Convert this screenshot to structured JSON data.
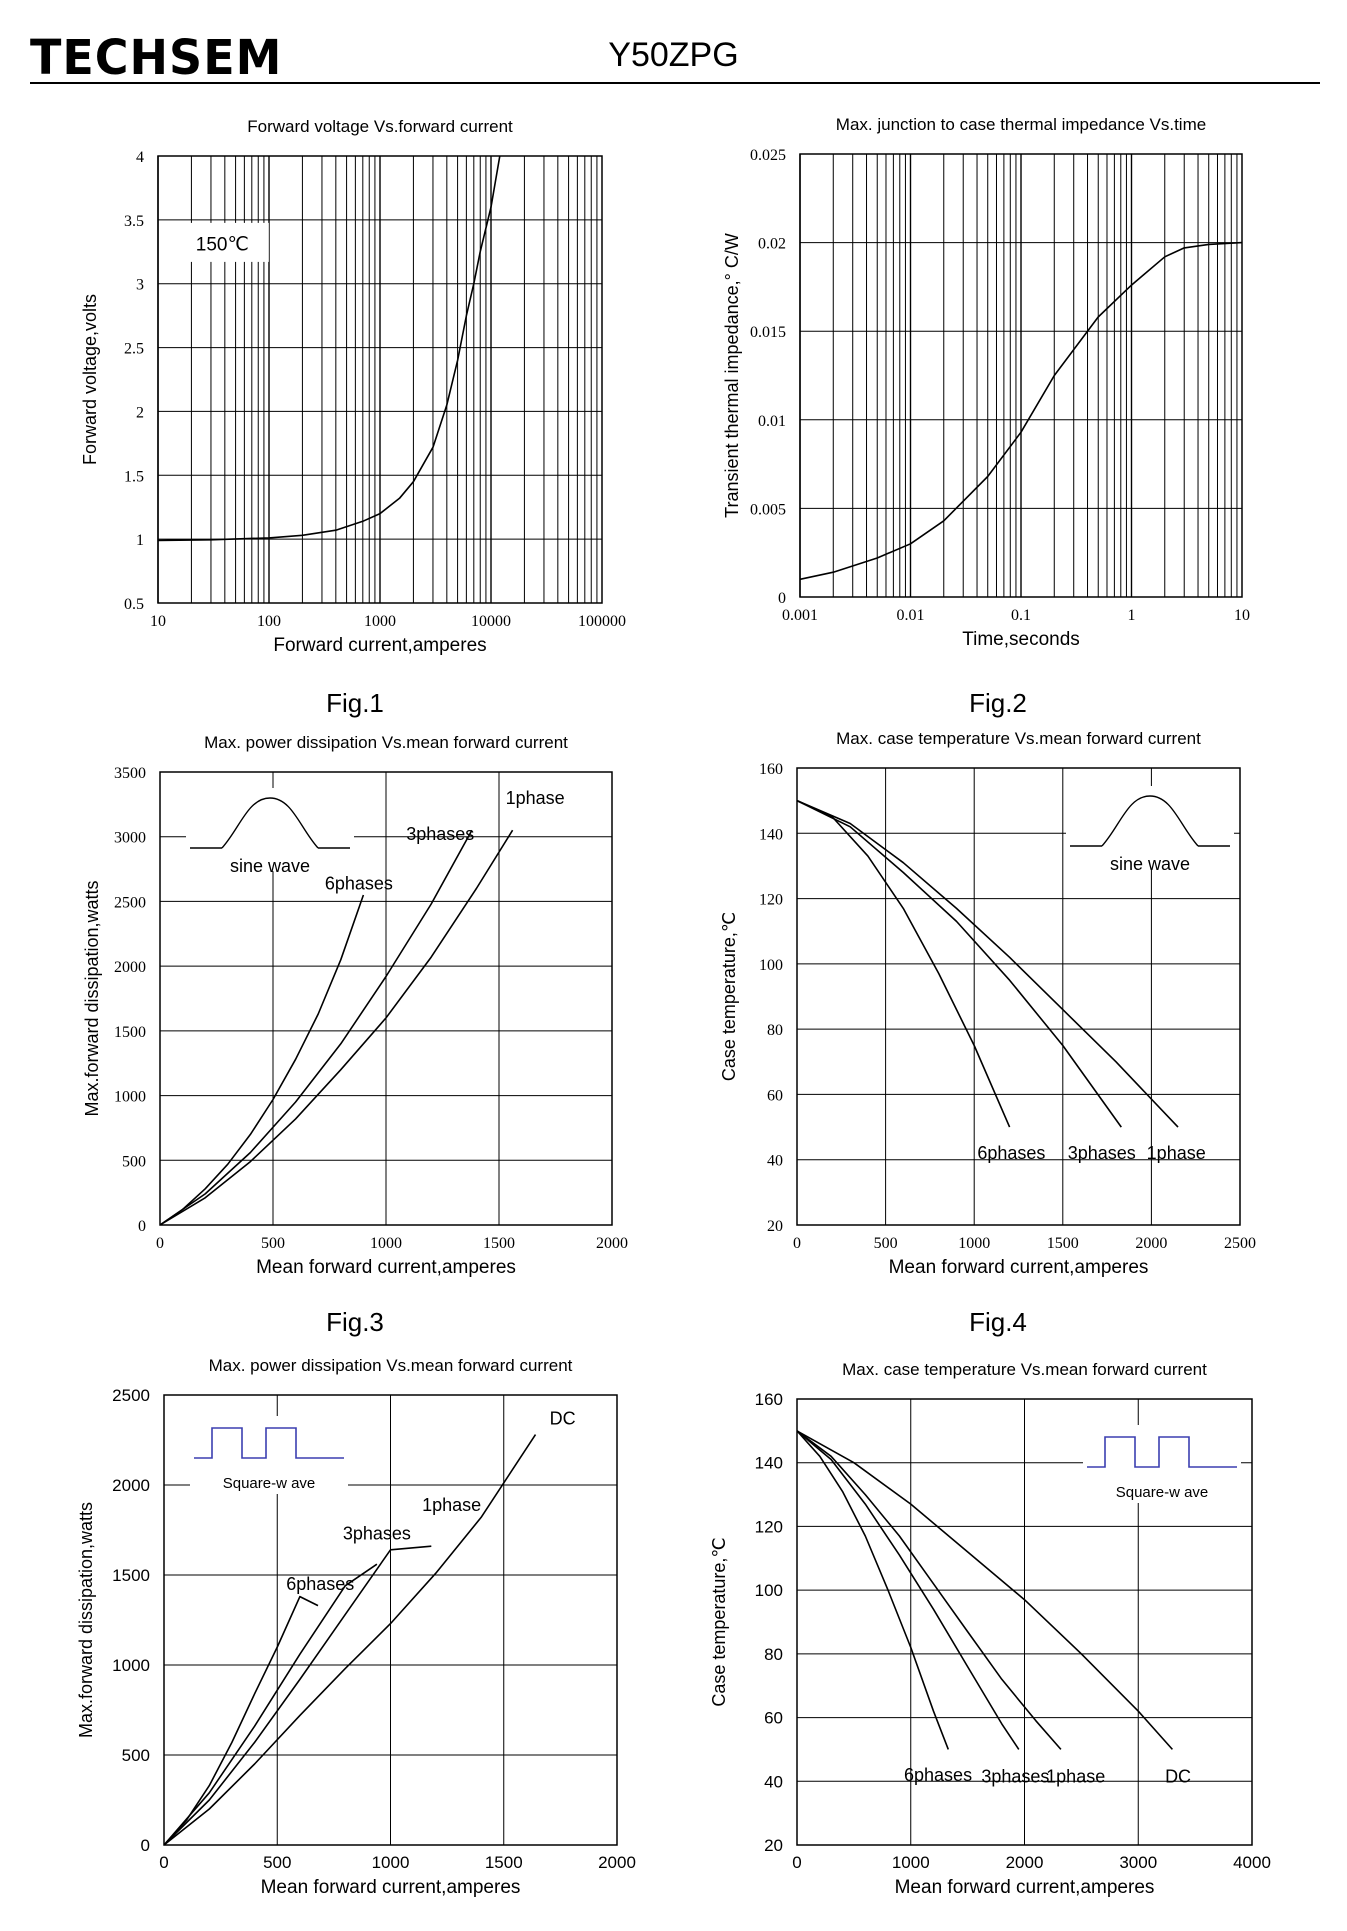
{
  "header": {
    "brand": "TECHSEM",
    "model": "Y50ZPG"
  },
  "figures": [
    "Fig.1",
    "Fig.2",
    "Fig.3",
    "Fig.4"
  ],
  "chart_data": [
    {
      "id": "fig1",
      "type": "line",
      "title": "Forward  voltage  Vs.forward  current",
      "xlabel": "Forward  current,amperes",
      "ylabel": "Forward  voltage,volts",
      "xscale": "log",
      "xlim": [
        10,
        100000
      ],
      "ylim": [
        0.5,
        4
      ],
      "xticks": [
        10,
        100,
        1000,
        10000,
        100000
      ],
      "yticks": [
        0.5,
        1,
        1.5,
        2,
        2.5,
        3,
        3.5,
        4
      ],
      "xtick_labels": [
        "10",
        "100",
        "1000",
        "10000",
        "100000"
      ],
      "ytick_labels": [
        "0.5",
        "1",
        "1.5",
        "2",
        "2.5",
        "3",
        "3.5",
        "4"
      ],
      "grid": true,
      "annotations": [
        {
          "text": "150℃",
          "x": 18,
          "y": 3.3,
          "boxed": true
        }
      ],
      "series": [
        {
          "name": "",
          "points": [
            [
              10,
              0.99
            ],
            [
              30,
              0.995
            ],
            [
              100,
              1.01
            ],
            [
              200,
              1.03
            ],
            [
              400,
              1.07
            ],
            [
              700,
              1.14
            ],
            [
              1000,
              1.2
            ],
            [
              1500,
              1.32
            ],
            [
              2000,
              1.45
            ],
            [
              3000,
              1.72
            ],
            [
              4000,
              2.05
            ],
            [
              5000,
              2.4
            ],
            [
              6000,
              2.75
            ],
            [
              7000,
              3.0
            ],
            [
              8000,
              3.25
            ],
            [
              10000,
              3.6
            ],
            [
              12000,
              4.0
            ]
          ]
        }
      ]
    },
    {
      "id": "fig2",
      "type": "line",
      "title": "Max. junction to case thermal impedance  Vs.time",
      "xlabel": "Time,seconds",
      "ylabel": "Transient  thermal impedance,° C/W",
      "xscale": "log",
      "xlim": [
        0.001,
        10
      ],
      "ylim": [
        0,
        0.025
      ],
      "xticks": [
        0.001,
        0.01,
        0.1,
        1,
        10
      ],
      "yticks": [
        0,
        0.005,
        0.01,
        0.015,
        0.02,
        0.025
      ],
      "xtick_labels": [
        "0.001",
        "0.01",
        "0.1",
        "1",
        "10"
      ],
      "ytick_labels": [
        "0",
        "0.005",
        "0.01",
        "0.015",
        "0.02",
        "0.025"
      ],
      "grid": true,
      "series": [
        {
          "name": "",
          "points": [
            [
              0.001,
              0.001
            ],
            [
              0.002,
              0.0014
            ],
            [
              0.005,
              0.0022
            ],
            [
              0.01,
              0.003
            ],
            [
              0.02,
              0.0043
            ],
            [
              0.05,
              0.0068
            ],
            [
              0.1,
              0.0093
            ],
            [
              0.2,
              0.0125
            ],
            [
              0.5,
              0.0158
            ],
            [
              1,
              0.0176
            ],
            [
              2,
              0.0192
            ],
            [
              3,
              0.0197
            ],
            [
              5,
              0.0199
            ],
            [
              10,
              0.02
            ]
          ]
        }
      ]
    },
    {
      "id": "fig3",
      "type": "line",
      "title": "Max. power dissipation  Vs.mean  forward current",
      "xlabel": "Mean forward  current,amperes",
      "ylabel": "Max.forward  dissipation,watts",
      "xlim": [
        0,
        2000
      ],
      "ylim": [
        0,
        3500
      ],
      "xticks": [
        0,
        500,
        1000,
        1500,
        2000
      ],
      "yticks": [
        0,
        500,
        1000,
        1500,
        2000,
        2500,
        3000,
        3500
      ],
      "xtick_labels": [
        "0",
        "500",
        "1000",
        "1500",
        "2000"
      ],
      "ytick_labels": [
        "0",
        "500",
        "1000",
        "1500",
        "2000",
        "2500",
        "3000",
        "3500"
      ],
      "grid": true,
      "inset": {
        "shape": "sine",
        "label": "sine wave"
      },
      "series": [
        {
          "name": "6phases",
          "points": [
            [
              0,
              0
            ],
            [
              100,
              120
            ],
            [
              200,
              280
            ],
            [
              300,
              470
            ],
            [
              400,
              700
            ],
            [
              500,
              970
            ],
            [
              600,
              1280
            ],
            [
              700,
              1630
            ],
            [
              800,
              2050
            ],
            [
              900,
              2550
            ]
          ]
        },
        {
          "name": "3phases",
          "points": [
            [
              0,
              0
            ],
            [
              200,
              240
            ],
            [
              400,
              560
            ],
            [
              600,
              950
            ],
            [
              800,
              1400
            ],
            [
              1000,
              1920
            ],
            [
              1200,
              2480
            ],
            [
              1380,
              3050
            ]
          ]
        },
        {
          "name": "1phase",
          "points": [
            [
              0,
              0
            ],
            [
              200,
              210
            ],
            [
              400,
              490
            ],
            [
              600,
              820
            ],
            [
              800,
              1200
            ],
            [
              1000,
              1600
            ],
            [
              1200,
              2070
            ],
            [
              1400,
              2600
            ],
            [
              1560,
              3050
            ]
          ]
        }
      ],
      "series_labels": [
        {
          "text": "1phase",
          "x": 1660,
          "y": 3300
        },
        {
          "text": "3phases",
          "x": 1240,
          "y": 3020
        },
        {
          "text": "6phases",
          "x": 880,
          "y": 2640
        }
      ]
    },
    {
      "id": "fig4",
      "type": "line",
      "title": "Max. case temperature  Vs.mean  forward current",
      "xlabel": "Mean forward  current,amperes",
      "ylabel": "Case temperature,℃",
      "xlim": [
        0,
        2500
      ],
      "ylim": [
        20,
        160
      ],
      "xticks": [
        0,
        500,
        1000,
        1500,
        2000,
        2500
      ],
      "yticks": [
        20,
        40,
        60,
        80,
        100,
        120,
        140,
        160
      ],
      "xtick_labels": [
        "0",
        "500",
        "1000",
        "1500",
        "2000",
        "2500"
      ],
      "ytick_labels": [
        "20",
        "40",
        "60",
        "80",
        "100",
        "120",
        "140",
        "160"
      ],
      "grid": true,
      "inset": {
        "shape": "sine",
        "label": "sine wave"
      },
      "series": [
        {
          "name": "6phases",
          "points": [
            [
              0,
              150
            ],
            [
              200,
              145
            ],
            [
              400,
              133
            ],
            [
              600,
              117
            ],
            [
              800,
              97
            ],
            [
              1000,
              75
            ],
            [
              1200,
              50
            ]
          ]
        },
        {
          "name": "3phases",
          "points": [
            [
              0,
              150
            ],
            [
              300,
              142
            ],
            [
              600,
              128
            ],
            [
              900,
              113
            ],
            [
              1200,
              95
            ],
            [
              1500,
              75
            ],
            [
              1830,
              50
            ]
          ]
        },
        {
          "name": "1phase",
          "points": [
            [
              0,
              150
            ],
            [
              300,
              143
            ],
            [
              600,
              131
            ],
            [
              900,
              117
            ],
            [
              1200,
              102
            ],
            [
              1500,
              86
            ],
            [
              1800,
              70
            ],
            [
              2150,
              50
            ]
          ]
        }
      ],
      "series_labels": [
        {
          "text": "6phases",
          "x": 1210,
          "y": 42
        },
        {
          "text": "3phases",
          "x": 1720,
          "y": 42
        },
        {
          "text": "1phase",
          "x": 2140,
          "y": 42
        }
      ]
    },
    {
      "id": "fig5",
      "type": "line",
      "title": "Max. power dissipation  Vs.mean  forward current",
      "xlabel": "Mean forward  current,amperes",
      "ylabel": "Max.forward  dissipation,watts",
      "xlim": [
        0,
        2000
      ],
      "ylim": [
        0,
        2500
      ],
      "xticks": [
        0,
        500,
        1000,
        1500,
        2000
      ],
      "yticks": [
        0,
        500,
        1000,
        1500,
        2000,
        2500
      ],
      "xtick_labels": [
        "0",
        "500",
        "1000",
        "1500",
        "2000"
      ],
      "ytick_labels": [
        "0",
        "500",
        "1000",
        "1500",
        "2000",
        "2500"
      ],
      "grid": true,
      "inset": {
        "shape": "square",
        "label": "Square-w ave"
      },
      "series": [
        {
          "name": "6phases",
          "points": [
            [
              0,
              0
            ],
            [
              100,
              140
            ],
            [
              200,
              330
            ],
            [
              300,
              570
            ],
            [
              400,
              840
            ],
            [
              500,
              1100
            ],
            [
              600,
              1380
            ],
            [
              680,
              1330
            ]
          ]
        },
        {
          "name": "3phases",
          "points": [
            [
              0,
              0
            ],
            [
              200,
              290
            ],
            [
              400,
              660
            ],
            [
              600,
              1060
            ],
            [
              800,
              1440
            ],
            [
              940,
              1560
            ]
          ]
        },
        {
          "name": "1phase",
          "points": [
            [
              0,
              0
            ],
            [
              200,
              250
            ],
            [
              400,
              570
            ],
            [
              600,
              920
            ],
            [
              800,
              1280
            ],
            [
              1000,
              1640
            ],
            [
              1180,
              1660
            ]
          ]
        },
        {
          "name": "DC",
          "points": [
            [
              0,
              0
            ],
            [
              200,
              200
            ],
            [
              400,
              450
            ],
            [
              600,
              720
            ],
            [
              800,
              980
            ],
            [
              1000,
              1230
            ],
            [
              1200,
              1510
            ],
            [
              1400,
              1820
            ],
            [
              1640,
              2280
            ]
          ]
        }
      ],
      "series_labels": [
        {
          "text": "DC",
          "x": 1760,
          "y": 2370
        },
        {
          "text": "1phase",
          "x": 1270,
          "y": 1890
        },
        {
          "text": "3phases",
          "x": 940,
          "y": 1730
        },
        {
          "text": "6phases",
          "x": 690,
          "y": 1450
        }
      ]
    },
    {
      "id": "fig6",
      "type": "line",
      "title": "Max. case temperature  Vs.mean  forward current",
      "xlabel": "Mean forward  current,amperes",
      "ylabel": "Case temperature,℃",
      "xlim": [
        0,
        4000
      ],
      "ylim": [
        20,
        160
      ],
      "xticks": [
        0,
        1000,
        2000,
        3000,
        4000
      ],
      "yticks": [
        20,
        40,
        60,
        80,
        100,
        120,
        140,
        160
      ],
      "xtick_labels": [
        "0",
        "1000",
        "2000",
        "3000",
        "4000"
      ],
      "ytick_labels": [
        "20",
        "40",
        "60",
        "80",
        "100",
        "120",
        "140",
        "160"
      ],
      "grid": true,
      "inset": {
        "shape": "square",
        "label": "Square-w ave"
      },
      "series": [
        {
          "name": "6phases",
          "points": [
            [
              0,
              150
            ],
            [
              200,
              142
            ],
            [
              400,
              131
            ],
            [
              600,
              117
            ],
            [
              800,
              100
            ],
            [
              1000,
              82
            ],
            [
              1200,
              62
            ],
            [
              1330,
              50
            ]
          ]
        },
        {
          "name": "3phases",
          "points": [
            [
              0,
              150
            ],
            [
              300,
              141
            ],
            [
              600,
              127
            ],
            [
              900,
              111
            ],
            [
              1200,
              94
            ],
            [
              1500,
              76
            ],
            [
              1800,
              58
            ],
            [
              1950,
              50
            ]
          ]
        },
        {
          "name": "1phase",
          "points": [
            [
              0,
              150
            ],
            [
              300,
              142
            ],
            [
              600,
              130
            ],
            [
              900,
              117
            ],
            [
              1200,
              102
            ],
            [
              1500,
              87
            ],
            [
              1800,
              72
            ],
            [
              2100,
              59
            ],
            [
              2320,
              50
            ]
          ]
        },
        {
          "name": "DC",
          "points": [
            [
              0,
              150
            ],
            [
              500,
              140
            ],
            [
              1000,
              127
            ],
            [
              1500,
              112
            ],
            [
              2000,
              97
            ],
            [
              2500,
              80
            ],
            [
              3000,
              62
            ],
            [
              3300,
              50
            ]
          ]
        }
      ],
      "series_labels": [
        {
          "text": "6phases",
          "x": 1240,
          "y": 42
        },
        {
          "text": "3phases",
          "x": 1920,
          "y": 41.5
        },
        {
          "text": "1phase",
          "x": 2450,
          "y": 41.5
        },
        {
          "text": "DC",
          "x": 3350,
          "y": 41.5
        }
      ]
    }
  ]
}
